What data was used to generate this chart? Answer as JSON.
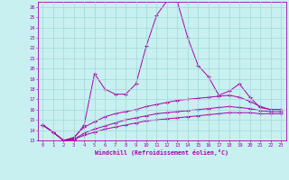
{
  "xlabel": "Windchill (Refroidissement éolien,°C)",
  "ylabel": "",
  "xlim": [
    -0.5,
    23.5
  ],
  "ylim": [
    13,
    26.5
  ],
  "xticks": [
    0,
    1,
    2,
    3,
    4,
    5,
    6,
    7,
    8,
    9,
    10,
    11,
    12,
    13,
    14,
    15,
    16,
    17,
    18,
    19,
    20,
    21,
    22,
    23
  ],
  "yticks": [
    13,
    14,
    15,
    16,
    17,
    18,
    19,
    20,
    21,
    22,
    23,
    24,
    25,
    26
  ],
  "bg_color": "#c8f0f0",
  "line_color": "#aa00aa",
  "grid_color": "#a0d8d8",
  "line1": [
    14.5,
    13.8,
    13.0,
    13.2,
    14.5,
    19.5,
    18.0,
    17.5,
    17.5,
    18.5,
    22.2,
    25.2,
    26.6,
    26.5,
    23.0,
    20.3,
    19.2,
    17.4,
    17.8,
    18.5,
    17.2,
    16.2,
    16.0,
    16.0
  ],
  "line2": [
    14.5,
    13.8,
    13.0,
    13.3,
    14.3,
    14.8,
    15.3,
    15.6,
    15.8,
    16.0,
    16.3,
    16.5,
    16.7,
    16.9,
    17.0,
    17.1,
    17.2,
    17.3,
    17.4,
    17.2,
    16.8,
    16.3,
    16.0,
    16.0
  ],
  "line3": [
    14.5,
    13.8,
    13.0,
    13.1,
    13.7,
    14.1,
    14.4,
    14.7,
    15.0,
    15.2,
    15.4,
    15.6,
    15.7,
    15.8,
    15.9,
    16.0,
    16.1,
    16.2,
    16.3,
    16.2,
    16.1,
    15.9,
    15.8,
    15.8
  ],
  "line4": [
    14.5,
    13.8,
    13.0,
    13.1,
    13.5,
    13.8,
    14.1,
    14.3,
    14.5,
    14.7,
    14.9,
    15.0,
    15.1,
    15.2,
    15.3,
    15.4,
    15.5,
    15.6,
    15.7,
    15.7,
    15.7,
    15.6,
    15.6,
    15.6
  ]
}
